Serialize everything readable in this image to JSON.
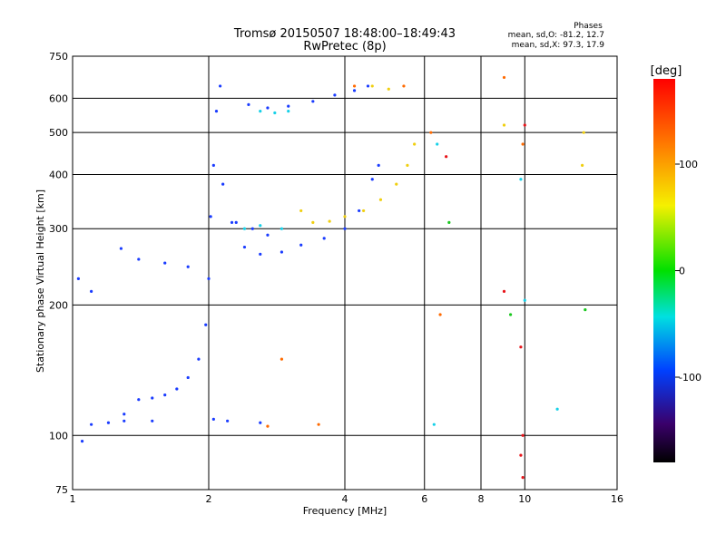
{
  "chart_data": {
    "type": "scatter",
    "title": "Tromsø 20150507 18:48:00–18:49:43",
    "subtitle": "RwPretec (8p)",
    "xlabel": "Frequency [MHz]",
    "ylabel": "Stationary phase Virtual Height [km]",
    "x_scale": "log",
    "y_scale": "log",
    "xlim": [
      1,
      16
    ],
    "ylim": [
      75,
      750
    ],
    "x_ticks": [
      1,
      2,
      4,
      6,
      8,
      10,
      16
    ],
    "y_ticks": [
      75,
      100,
      200,
      300,
      400,
      500,
      600,
      750
    ],
    "grid": true,
    "phase_info": {
      "heading": "Phases",
      "line_o": "mean, sd,O: -81.2, 12.7",
      "line_x": "mean, sd,X:  97.3, 17.9"
    },
    "colorbar": {
      "label": "[deg]",
      "min": -180,
      "max": 180,
      "ticks": [
        100,
        0,
        -100
      ]
    },
    "series": [
      {
        "color": "#1a3cff",
        "points": [
          [
            1.05,
            97
          ],
          [
            1.1,
            106
          ],
          [
            1.2,
            107
          ],
          [
            1.3,
            112
          ],
          [
            1.4,
            121
          ],
          [
            1.5,
            122
          ],
          [
            1.6,
            124
          ],
          [
            1.7,
            128
          ],
          [
            1.8,
            136
          ],
          [
            1.9,
            150
          ],
          [
            1.97,
            180
          ],
          [
            2.0,
            230
          ],
          [
            2.02,
            320
          ],
          [
            2.05,
            420
          ],
          [
            2.08,
            560
          ],
          [
            2.12,
            640
          ],
          [
            2.15,
            380
          ],
          [
            2.25,
            310
          ],
          [
            2.4,
            272
          ],
          [
            2.6,
            262
          ],
          [
            2.9,
            265
          ],
          [
            3.2,
            275
          ],
          [
            3.6,
            285
          ],
          [
            4.0,
            300
          ],
          [
            4.3,
            330
          ],
          [
            4.6,
            390
          ],
          [
            4.75,
            420
          ],
          [
            1.28,
            270
          ],
          [
            1.4,
            255
          ],
          [
            1.6,
            250
          ],
          [
            1.8,
            245
          ],
          [
            2.3,
            310
          ],
          [
            2.5,
            300
          ],
          [
            2.7,
            290
          ],
          [
            2.45,
            580
          ],
          [
            2.7,
            570
          ],
          [
            3.0,
            575
          ],
          [
            3.4,
            590
          ],
          [
            3.8,
            610
          ],
          [
            4.2,
            625
          ],
          [
            4.5,
            640
          ],
          [
            1.03,
            230
          ],
          [
            1.1,
            215
          ],
          [
            2.05,
            109
          ],
          [
            2.2,
            108
          ],
          [
            2.6,
            107
          ],
          [
            1.3,
            108
          ],
          [
            1.5,
            108
          ]
        ]
      },
      {
        "color": "#17d1e8",
        "points": [
          [
            2.6,
            560
          ],
          [
            2.8,
            555
          ],
          [
            3.0,
            560
          ],
          [
            2.4,
            300
          ],
          [
            2.6,
            305
          ],
          [
            2.9,
            300
          ],
          [
            6.3,
            106
          ],
          [
            10.0,
            205
          ],
          [
            9.8,
            390
          ],
          [
            6.4,
            470
          ],
          [
            11.8,
            115
          ]
        ]
      },
      {
        "color": "#f0cf0f",
        "points": [
          [
            3.2,
            330
          ],
          [
            3.4,
            310
          ],
          [
            3.7,
            312
          ],
          [
            4.0,
            320
          ],
          [
            4.4,
            330
          ],
          [
            4.8,
            350
          ],
          [
            5.2,
            380
          ],
          [
            5.5,
            420
          ],
          [
            5.7,
            470
          ],
          [
            4.6,
            640
          ],
          [
            5.0,
            630
          ],
          [
            9.0,
            520
          ],
          [
            13.5,
            500
          ],
          [
            13.4,
            420
          ]
        ]
      },
      {
        "color": "#ff6a00",
        "points": [
          [
            2.7,
            105
          ],
          [
            3.5,
            106
          ],
          [
            2.9,
            150
          ],
          [
            6.5,
            190
          ],
          [
            9.0,
            670
          ],
          [
            5.4,
            640
          ],
          [
            4.2,
            640
          ],
          [
            9.9,
            470
          ],
          [
            6.2,
            500
          ]
        ]
      },
      {
        "color": "#e8141a",
        "points": [
          [
            9.8,
            160
          ],
          [
            9.9,
            100
          ],
          [
            9.8,
            90
          ],
          [
            9.9,
            80
          ],
          [
            10.0,
            520
          ],
          [
            9.0,
            215
          ],
          [
            6.7,
            440
          ]
        ]
      },
      {
        "color": "#19c81e",
        "points": [
          [
            9.3,
            190
          ],
          [
            13.6,
            195
          ],
          [
            6.8,
            310
          ]
        ]
      }
    ]
  }
}
